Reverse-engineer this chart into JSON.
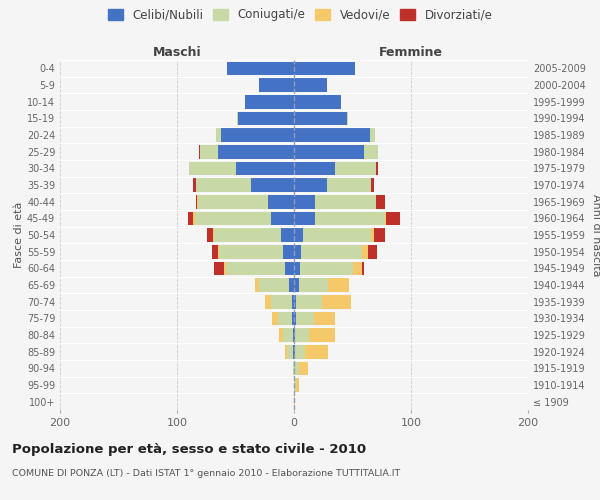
{
  "age_groups": [
    "100+",
    "95-99",
    "90-94",
    "85-89",
    "80-84",
    "75-79",
    "70-74",
    "65-69",
    "60-64",
    "55-59",
    "50-54",
    "45-49",
    "40-44",
    "35-39",
    "30-34",
    "25-29",
    "20-24",
    "15-19",
    "10-14",
    "5-9",
    "0-4"
  ],
  "birth_years": [
    "≤ 1909",
    "1910-1914",
    "1915-1919",
    "1920-1924",
    "1925-1929",
    "1930-1934",
    "1935-1939",
    "1940-1944",
    "1945-1949",
    "1950-1954",
    "1955-1959",
    "1960-1964",
    "1965-1969",
    "1970-1974",
    "1975-1979",
    "1980-1984",
    "1985-1989",
    "1990-1994",
    "1995-1999",
    "2000-2004",
    "2005-2009"
  ],
  "males": {
    "celibi": [
      0,
      0,
      0,
      1,
      1,
      2,
      2,
      4,
      8,
      9,
      11,
      20,
      22,
      37,
      50,
      65,
      62,
      48,
      42,
      30,
      57
    ],
    "coniugati": [
      0,
      0,
      1,
      5,
      8,
      12,
      18,
      26,
      50,
      55,
      57,
      65,
      60,
      47,
      40,
      15,
      5,
      1,
      0,
      0,
      0
    ],
    "vedovi": [
      0,
      0,
      0,
      2,
      4,
      5,
      5,
      3,
      2,
      1,
      1,
      1,
      1,
      0,
      0,
      0,
      0,
      0,
      0,
      0,
      0
    ],
    "divorziati": [
      0,
      0,
      0,
      0,
      0,
      0,
      0,
      0,
      8,
      5,
      5,
      5,
      1,
      2,
      0,
      1,
      0,
      0,
      0,
      0,
      0
    ]
  },
  "females": {
    "nubili": [
      0,
      0,
      0,
      1,
      1,
      2,
      2,
      4,
      5,
      6,
      8,
      18,
      18,
      28,
      35,
      60,
      65,
      45,
      40,
      28,
      52
    ],
    "coniugate": [
      0,
      2,
      4,
      8,
      12,
      15,
      22,
      25,
      45,
      52,
      58,
      60,
      52,
      38,
      35,
      12,
      4,
      1,
      0,
      0,
      0
    ],
    "vedove": [
      1,
      2,
      8,
      20,
      22,
      18,
      25,
      18,
      8,
      5,
      2,
      1,
      0,
      0,
      0,
      0,
      0,
      0,
      0,
      0,
      0
    ],
    "divorziate": [
      0,
      0,
      0,
      0,
      0,
      0,
      0,
      0,
      2,
      8,
      10,
      12,
      8,
      2,
      2,
      0,
      0,
      0,
      0,
      0,
      0
    ]
  },
  "colors": {
    "celibi_nubili": "#4472c4",
    "coniugati": "#c8d9a5",
    "vedovi": "#f5c96a",
    "divorziati": "#c0302a"
  },
  "title": "Popolazione per età, sesso e stato civile - 2010",
  "subtitle": "COMUNE DI PONZA (LT) - Dati ISTAT 1° gennaio 2010 - Elaborazione TUTTITALIA.IT",
  "xlabel_left": "Maschi",
  "xlabel_right": "Femmine",
  "ylabel_left": "Fasce di età",
  "ylabel_right": "Anni di nascita",
  "xlim": 200,
  "legend_labels": [
    "Celibi/Nubili",
    "Coniugati/e",
    "Vedovi/e",
    "Divorziati/e"
  ],
  "background_color": "#f5f5f5"
}
